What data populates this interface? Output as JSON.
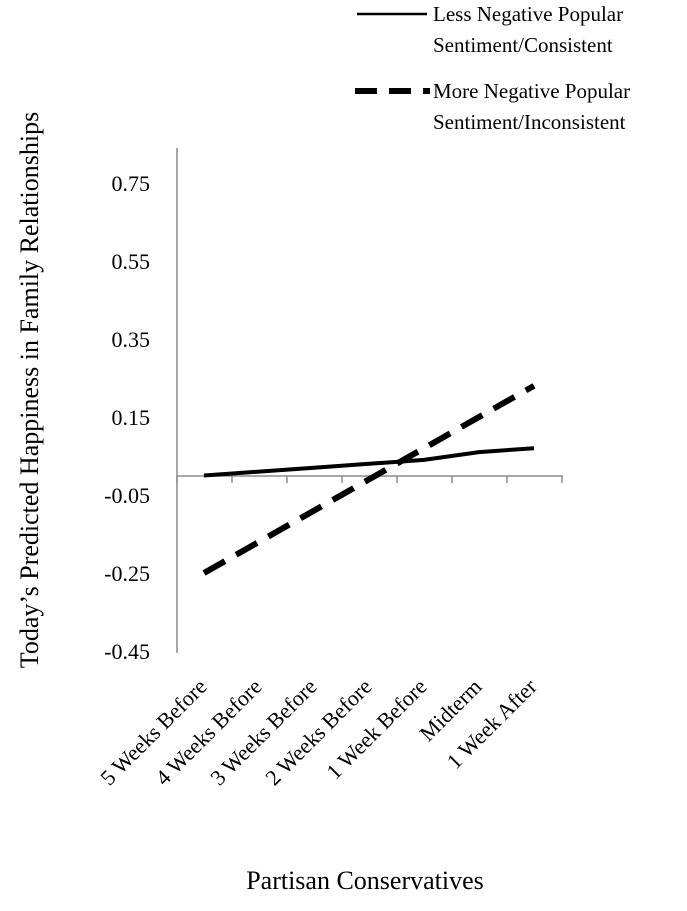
{
  "chart_data": {
    "type": "line",
    "title": "",
    "xlabel": "Partisan Conservatives",
    "ylabel": "Today’s Predicted Happiness in Family Relationships",
    "categories": [
      "5 Weeks Before",
      "4 Weeks Before",
      "3 Weeks Before",
      "2 Weeks Before",
      "1 Week Before",
      "Midterm",
      "1 Week After"
    ],
    "yticks": [
      "0.75",
      "0.55",
      "0.35",
      "0.15",
      "-0.05",
      "-0.25",
      "-0.45"
    ],
    "ylim": [
      -0.45,
      0.75
    ],
    "legend_position": "top-right",
    "series": [
      {
        "name": "Less Negative Popular Sentiment/Consistent",
        "style": "solid",
        "color": "#000000",
        "values": [
          0.0,
          0.01,
          0.02,
          0.03,
          0.04,
          0.06,
          0.07
        ]
      },
      {
        "name": "More Negative Popular Sentiment/Inconsistent",
        "style": "dashed",
        "color": "#000000",
        "values": [
          -0.25,
          -0.17,
          -0.09,
          -0.01,
          0.07,
          0.15,
          0.23
        ]
      }
    ]
  }
}
